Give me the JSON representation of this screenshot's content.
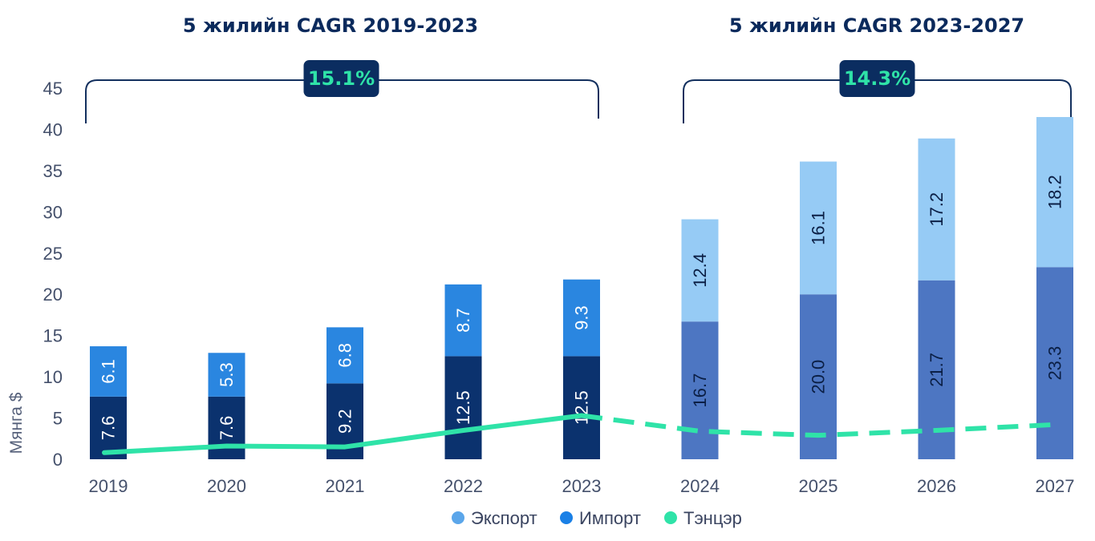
{
  "chart_data": {
    "type": "bar",
    "stacked": true,
    "ylabel": "Мянга $",
    "ylim": [
      0,
      45
    ],
    "yticks": [
      0,
      5,
      10,
      15,
      20,
      25,
      30,
      35,
      40,
      45
    ],
    "categories": [
      "2019",
      "2020",
      "2021",
      "2022",
      "2023",
      "2024",
      "2025",
      "2026",
      "2027"
    ],
    "series": [
      {
        "name": "Импорт",
        "values": [
          7.6,
          7.6,
          9.2,
          12.5,
          12.5,
          16.7,
          20.0,
          21.7,
          23.3
        ],
        "labels": [
          "7.6",
          "7.6",
          "9.2",
          "12.5",
          "12.5",
          "16.7",
          "20.0",
          "21.7",
          "23.3"
        ]
      },
      {
        "name": "Экспорт",
        "values": [
          6.1,
          5.3,
          6.8,
          8.7,
          9.3,
          12.4,
          16.1,
          17.2,
          18.2
        ],
        "labels": [
          "6.1",
          "5.3",
          "6.8",
          "8.7",
          "9.3",
          "12.4",
          "16.1",
          "17.2",
          "18.2"
        ]
      }
    ],
    "line": {
      "name": "Тэнцэр",
      "values": [
        0.8,
        1.6,
        1.5,
        3.5,
        5.3,
        3.4,
        2.9,
        3.5,
        4.2
      ],
      "dashed_from_index": 4
    },
    "colors": {
      "import_actual": "#0b326e",
      "export_actual": "#2a86e0",
      "import_forecast": "#4d76c2",
      "export_forecast": "#96cbf5",
      "line": "#2fe3a8",
      "legend_export": "#5ba6ea",
      "legend_import": "#1a80e6",
      "legend_balance": "#2fe3a8"
    },
    "periods": [
      {
        "title": "5 жилийн CAGR 2019-2023",
        "cagr": "15.1%",
        "from_index": 0,
        "to_index": 4
      },
      {
        "title": "5 жилийн CAGR 2023-2027",
        "cagr": "14.3%",
        "from_index": 5,
        "to_index": 8
      }
    ],
    "legend": {
      "placement": "bottom-center",
      "items": [
        "Экспорт",
        "Импорт",
        "Тэнцэр"
      ]
    },
    "grid": false
  }
}
